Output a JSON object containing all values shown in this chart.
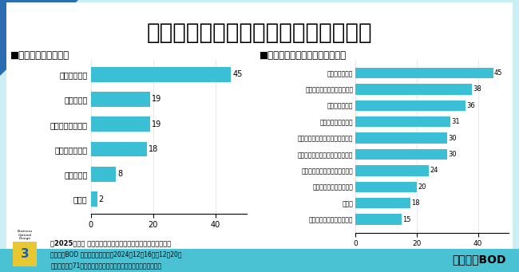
{
  "title": "高松市の魅力と職場環境に関する調査",
  "title_fontsize": 20,
  "bar_color": "#3bbfd4",
  "left_chart_title": "■高松市の魅力とは？",
  "left_categories": [
    "震災が少ない",
    "治安がよい",
    "食べ物が美味しい",
    "街並みがきれい",
    "物価が安い",
    "その他"
  ],
  "left_values": [
    45,
    19,
    19,
    18,
    8,
    2
  ],
  "left_xlim": [
    0,
    50
  ],
  "left_xticks": [
    0,
    20,
    40
  ],
  "right_chart_title": "■高松営業所の職場環境について",
  "right_categories": [
    "働きやすい環境",
    "上司や同僚など周りが協力的",
    "人間関係がよい",
    "チームワークが円滑",
    "コミュニケーションが円滑、活発",
    "風通しがよく意見がいえる雰囲気",
    "プライベートとの両立ができる",
    "悩みや問題を相談できる",
    "その他",
    "チャレンジできる職場環境"
  ],
  "right_values": [
    45,
    38,
    36,
    31,
    30,
    30,
    24,
    20,
    18,
    15
  ],
  "right_xlim": [
    0,
    50
  ],
  "right_xticks": [
    0,
    20,
    40
  ],
  "footer_text1": "【2025年公開 高松市の働きやすさに関するアンケート調査】",
  "footer_text2": "株式会社BOD 調べ　　調査期間：2024年12月16日〜12月20日",
  "footer_text3": "有効回答数：71人　　調査方法：インターネットによる任意回答",
  "footer_company": "株式会社BOD",
  "logo_yellow": "#e8c830",
  "logo_blue": "#1a5faa",
  "bg_light_blue": "#cceef5",
  "bg_dark_blue": "#1a5faa",
  "bg_teal": "#2ab8cc",
  "white": "#ffffff"
}
